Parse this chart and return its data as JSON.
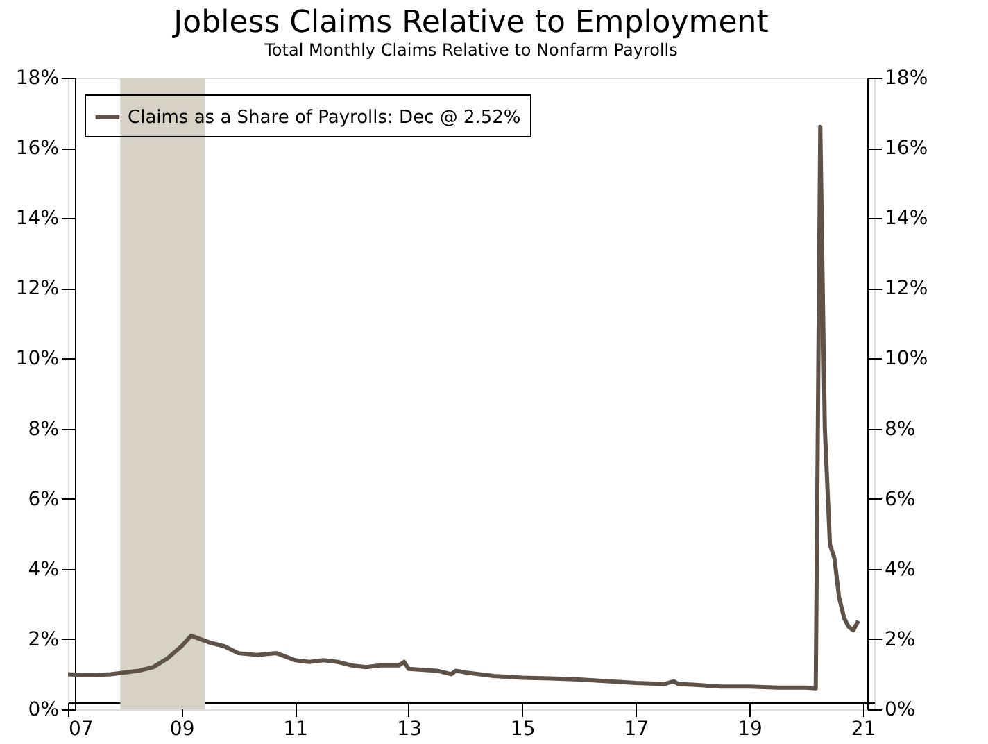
{
  "chart_data": {
    "type": "line",
    "title": "Jobless Claims Relative to Employment",
    "subtitle": "Total Monthly Claims Relative to Nonfarm Payrolls",
    "series": [
      {
        "name": "Claims as a Share of Payrolls: Dec @ 2.52%",
        "color": "#5f5349",
        "x": [
          2007.0,
          2007.25,
          2007.5,
          2007.75,
          2008.0,
          2008.25,
          2008.5,
          2008.75,
          2009.0,
          2009.17,
          2009.33,
          2009.5,
          2009.75,
          2010.0,
          2010.33,
          2010.67,
          2011.0,
          2011.25,
          2011.5,
          2011.75,
          2012.0,
          2012.25,
          2012.5,
          2012.83,
          2012.92,
          2013.0,
          2013.5,
          2013.75,
          2013.83,
          2014.0,
          2014.5,
          2015.0,
          2015.5,
          2016.0,
          2016.5,
          2017.0,
          2017.5,
          2017.67,
          2017.75,
          2018.0,
          2018.5,
          2019.0,
          2019.5,
          2020.0,
          2020.17,
          2020.25,
          2020.33,
          2020.42,
          2020.5,
          2020.58,
          2020.67,
          2020.75,
          2020.83,
          2020.92
        ],
        "values": [
          1.0,
          0.98,
          0.98,
          1.0,
          1.05,
          1.1,
          1.2,
          1.45,
          1.8,
          2.1,
          2.0,
          1.9,
          1.8,
          1.6,
          1.55,
          1.6,
          1.4,
          1.35,
          1.4,
          1.35,
          1.25,
          1.2,
          1.25,
          1.25,
          1.35,
          1.15,
          1.1,
          1.0,
          1.1,
          1.05,
          0.95,
          0.9,
          0.88,
          0.85,
          0.8,
          0.75,
          0.72,
          0.8,
          0.72,
          0.7,
          0.65,
          0.65,
          0.62,
          0.62,
          0.6,
          16.6,
          8.0,
          4.7,
          4.3,
          3.2,
          2.6,
          2.35,
          2.25,
          2.52
        ]
      }
    ],
    "xlim": [
      2007,
      2021.2
    ],
    "xticks": [
      {
        "value": 2007,
        "label": "07"
      },
      {
        "value": 2009,
        "label": "09"
      },
      {
        "value": 2011,
        "label": "11"
      },
      {
        "value": 2013,
        "label": "13"
      },
      {
        "value": 2015,
        "label": "15"
      },
      {
        "value": 2017,
        "label": "17"
      },
      {
        "value": 2019,
        "label": "19"
      },
      {
        "value": 2021,
        "label": "21"
      }
    ],
    "ylim": [
      0,
      18
    ],
    "yticks": [
      {
        "value": 0,
        "label": "0%"
      },
      {
        "value": 2,
        "label": "2%"
      },
      {
        "value": 4,
        "label": "4%"
      },
      {
        "value": 6,
        "label": "6%"
      },
      {
        "value": 8,
        "label": "8%"
      },
      {
        "value": 10,
        "label": "10%"
      },
      {
        "value": 12,
        "label": "12%"
      },
      {
        "value": 14,
        "label": "14%"
      },
      {
        "value": 16,
        "label": "16%"
      },
      {
        "value": 18,
        "label": "18%"
      }
    ],
    "y2lim": [
      0,
      18
    ],
    "y2ticks": [
      {
        "value": 0,
        "label": "0%"
      },
      {
        "value": 2,
        "label": "2%"
      },
      {
        "value": 4,
        "label": "4%"
      },
      {
        "value": 6,
        "label": "6%"
      },
      {
        "value": 8,
        "label": "8%"
      },
      {
        "value": 10,
        "label": "10%"
      },
      {
        "value": 12,
        "label": "12%"
      },
      {
        "value": 14,
        "label": "14%"
      },
      {
        "value": 16,
        "label": "16%"
      },
      {
        "value": 18,
        "label": "18%"
      }
    ],
    "bands": [
      {
        "axis": "x",
        "from": 2007.92,
        "to": 2009.42,
        "color": "#d6d2c6"
      }
    ],
    "legend": "top left",
    "grid": false,
    "line_style": "solid",
    "marker": "none"
  }
}
